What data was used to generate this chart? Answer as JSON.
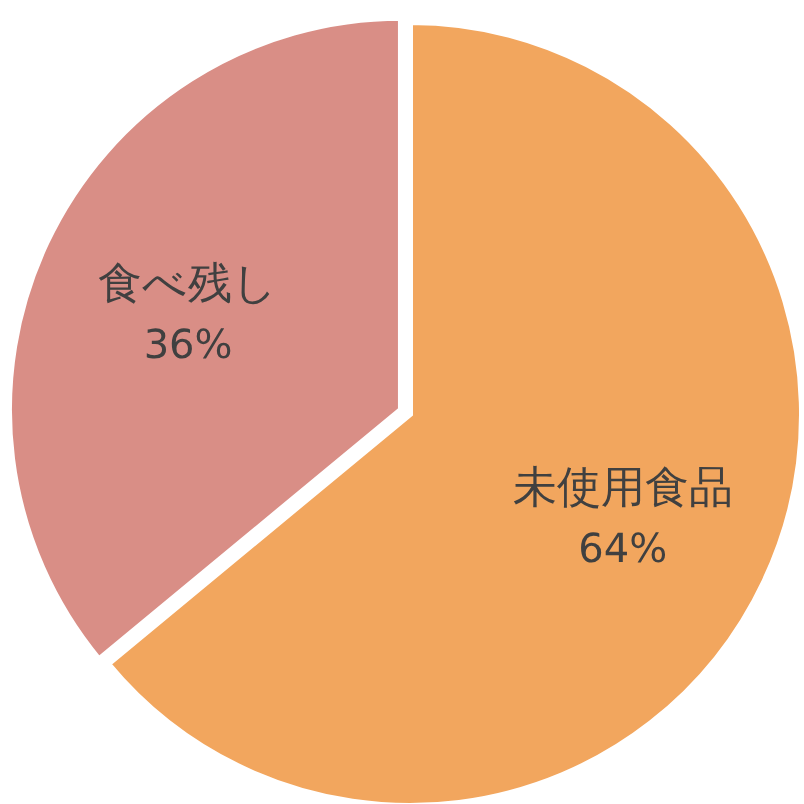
{
  "chart_data": {
    "type": "pie",
    "categories": [
      "未使用食品",
      "食べ残し"
    ],
    "values": [
      64,
      36
    ],
    "colors": [
      "#f2a65e",
      "#d98e86"
    ],
    "value_labels": [
      "64%",
      "36%"
    ]
  }
}
